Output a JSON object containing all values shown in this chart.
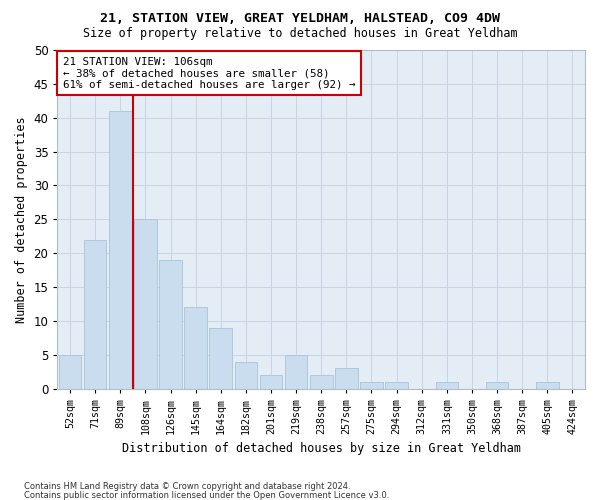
{
  "title1": "21, STATION VIEW, GREAT YELDHAM, HALSTEAD, CO9 4DW",
  "title2": "Size of property relative to detached houses in Great Yeldham",
  "xlabel": "Distribution of detached houses by size in Great Yeldham",
  "ylabel": "Number of detached properties",
  "categories": [
    "52sqm",
    "71sqm",
    "89sqm",
    "108sqm",
    "126sqm",
    "145sqm",
    "164sqm",
    "182sqm",
    "201sqm",
    "219sqm",
    "238sqm",
    "257sqm",
    "275sqm",
    "294sqm",
    "312sqm",
    "331sqm",
    "350sqm",
    "368sqm",
    "387sqm",
    "405sqm",
    "424sqm"
  ],
  "values": [
    5,
    22,
    41,
    25,
    19,
    12,
    9,
    4,
    2,
    5,
    2,
    3,
    1,
    1,
    0,
    1,
    0,
    1,
    0,
    1,
    0
  ],
  "bar_color": "#c9ddef",
  "bar_edge_color": "#a8c4d8",
  "vline_color": "#cc0000",
  "annotation_text": "21 STATION VIEW: 106sqm\n← 38% of detached houses are smaller (58)\n61% of semi-detached houses are larger (92) →",
  "annotation_box_color": "#ffffff",
  "annotation_box_edge": "#cc0000",
  "ylim": [
    0,
    50
  ],
  "yticks": [
    0,
    5,
    10,
    15,
    20,
    25,
    30,
    35,
    40,
    45,
    50
  ],
  "grid_color": "#c8d4e4",
  "background_color": "#e4edf5",
  "footer1": "Contains HM Land Registry data © Crown copyright and database right 2024.",
  "footer2": "Contains public sector information licensed under the Open Government Licence v3.0."
}
